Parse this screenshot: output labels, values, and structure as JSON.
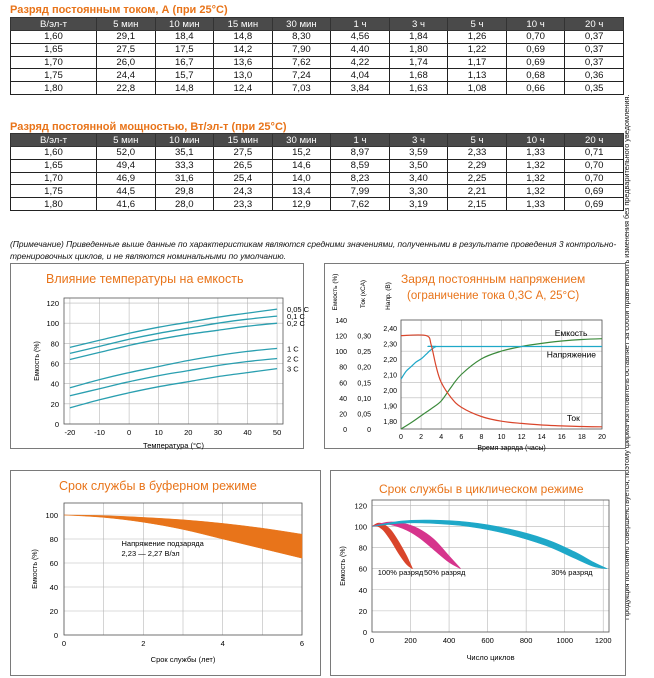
{
  "table1": {
    "title": "Разряд постоянным током, А (при 25°С)",
    "headers": [
      "В/эл-т",
      "5 мин",
      "10 мин",
      "15 мин",
      "30 мин",
      "1 ч",
      "3 ч",
      "5 ч",
      "10 ч",
      "20 ч"
    ],
    "rows": [
      [
        "1,60",
        "29,1",
        "18,4",
        "14,8",
        "8,30",
        "4,56",
        "1,84",
        "1,26",
        "0,70",
        "0,37"
      ],
      [
        "1,65",
        "27,5",
        "17,5",
        "14,2",
        "7,90",
        "4,40",
        "1,80",
        "1,22",
        "0,69",
        "0,37"
      ],
      [
        "1,70",
        "26,0",
        "16,7",
        "13,6",
        "7,62",
        "4,22",
        "1,74",
        "1,17",
        "0,69",
        "0,37"
      ],
      [
        "1,75",
        "24,4",
        "15,7",
        "13,0",
        "7,24",
        "4,04",
        "1,68",
        "1,13",
        "0,68",
        "0,36"
      ],
      [
        "1,80",
        "22,8",
        "14,8",
        "12,4",
        "7,03",
        "3,84",
        "1,63",
        "1,08",
        "0,66",
        "0,35"
      ]
    ]
  },
  "table2": {
    "title": "Разряд постоянной мощностью, Вт/эл-т (при 25°С)",
    "headers": [
      "В/эл-т",
      "5 мин",
      "10 мин",
      "15 мин",
      "30 мин",
      "1 ч",
      "3 ч",
      "5 ч",
      "10 ч",
      "20 ч"
    ],
    "rows": [
      [
        "1,60",
        "52,0",
        "35,1",
        "27,5",
        "15,2",
        "8,97",
        "3,59",
        "2,33",
        "1,33",
        "0,71"
      ],
      [
        "1,65",
        "49,4",
        "33,3",
        "26,5",
        "14,6",
        "8,59",
        "3,50",
        "2,29",
        "1,32",
        "0,70"
      ],
      [
        "1,70",
        "46,9",
        "31,6",
        "25,4",
        "14,0",
        "8,23",
        "3,40",
        "2,25",
        "1,32",
        "0,70"
      ],
      [
        "1,75",
        "44,5",
        "29,8",
        "24,3",
        "13,4",
        "7,99",
        "3,30",
        "2,21",
        "1,32",
        "0,69"
      ],
      [
        "1,80",
        "41,6",
        "28,0",
        "23,3",
        "12,9",
        "7,62",
        "3,19",
        "2,15",
        "1,33",
        "0,69"
      ]
    ]
  },
  "note": "(Примечание) Приведенные выше данные по характеристикам являются средними значениями, полученными в результате проведения 3 контрольно-тренировочных циклов, и не являются номинальными по умолчанию.",
  "side_text": "Продукция постоянно совершенствуется, поэтому фирма-изготовитель оставляет за собой право вносить изменения без предварительного уведомления.",
  "colors": {
    "orange": "#e8741a",
    "teal": "#2a9fb0",
    "green": "#3b8a3b",
    "red": "#d9452b",
    "magenta": "#d6348c",
    "cyan": "#1ea8c8",
    "grid": "#b8b8b8"
  },
  "chart_data": [
    {
      "type": "line",
      "title": "Влияние температуры на емкость",
      "xlabel": "Температура (°С)",
      "ylabel": "Емкость (%)",
      "x_ticks": [
        "-20",
        "-10",
        "0",
        "10",
        "20",
        "30",
        "40",
        "50"
      ],
      "y_ticks": [
        "0",
        "20",
        "40",
        "60",
        "80",
        "100",
        "120"
      ],
      "xlim": [
        -22,
        52
      ],
      "ylim": [
        0,
        125
      ],
      "x": [
        -20,
        -10,
        0,
        10,
        20,
        30,
        40,
        50
      ],
      "series": [
        {
          "name": "0,05 С",
          "values": [
            76,
            83,
            90,
            96,
            101,
            106,
            110,
            114
          ]
        },
        {
          "name": "0,1 С",
          "values": [
            70,
            77,
            84,
            90,
            95,
            100,
            104,
            107
          ]
        },
        {
          "name": "0,2 С",
          "values": [
            64,
            71,
            78,
            84,
            89,
            93,
            97,
            100
          ]
        },
        {
          "name": "1 С",
          "values": [
            36,
            44,
            51,
            57,
            63,
            68,
            72,
            75
          ]
        },
        {
          "name": "2 С",
          "values": [
            28,
            35,
            42,
            48,
            53,
            58,
            62,
            65
          ]
        },
        {
          "name": "3 С",
          "values": [
            16,
            24,
            31,
            37,
            42,
            47,
            51,
            55
          ]
        }
      ]
    },
    {
      "type": "line",
      "title": "Заряд постоянным напряжением",
      "subtitle": "(ограничение тока 0,3С А, 25°С)",
      "xlabel": "Время заряда (часы)",
      "axis_headers": [
        "Емкость (%)",
        "Ток (хСА)",
        "Напр. (В)"
      ],
      "x_ticks": [
        "0",
        "2",
        "4",
        "6",
        "8",
        "10",
        "12",
        "14",
        "16",
        "18",
        "20"
      ],
      "capacity_ticks": [
        "0",
        "20",
        "40",
        "60",
        "80",
        "100",
        "120",
        "140"
      ],
      "current_ticks": [
        "0",
        "0,05",
        "0,10",
        "0,15",
        "0,20",
        "0,25",
        "0,30"
      ],
      "voltage_ticks": [
        "1,80",
        "1,90",
        "2,00",
        "2,10",
        "2,20",
        "2,30",
        "2,40"
      ],
      "xlim": [
        0,
        20
      ],
      "series": [
        {
          "name": "Емкость",
          "axis": "capacity",
          "x": [
            0,
            1,
            2,
            3,
            4,
            5,
            6,
            8,
            10,
            12,
            14,
            16,
            18,
            20
          ],
          "values": [
            0,
            8,
            17,
            26,
            36,
            54,
            70,
            90,
            100,
            106,
            110,
            113,
            115,
            116
          ]
        },
        {
          "name": "Напряжение",
          "axis": "voltage",
          "x": [
            0,
            0.5,
            1,
            1.5,
            2,
            2.5,
            3,
            3.5,
            4,
            20
          ],
          "values": [
            2.07,
            2.12,
            2.15,
            2.18,
            2.2,
            2.23,
            2.26,
            2.28,
            2.28,
            2.28
          ]
        },
        {
          "name": "Ток",
          "axis": "current",
          "x": [
            0,
            2.5,
            3,
            3.5,
            4,
            5,
            6,
            8,
            10,
            12,
            14,
            16,
            18,
            20
          ],
          "values": [
            0.3,
            0.3,
            0.27,
            0.2,
            0.15,
            0.1,
            0.07,
            0.04,
            0.025,
            0.018,
            0.013,
            0.01,
            0.008,
            0.007
          ]
        }
      ]
    },
    {
      "type": "area",
      "title": "Срок службы в буферном режиме",
      "xlabel": "Срок службы (лет)",
      "ylabel": "Емкость (%)",
      "x_ticks": [
        "0",
        "2",
        "4",
        "6"
      ],
      "y_ticks": [
        "0",
        "20",
        "40",
        "60",
        "80",
        "100"
      ],
      "xlim": [
        0,
        6
      ],
      "ylim": [
        0,
        110
      ],
      "annotation": [
        "Напряжение подзаряда",
        "2,23 — 2,27 В/эл"
      ],
      "band": {
        "x": [
          0,
          1,
          2,
          3,
          4,
          5,
          6
        ],
        "upper": [
          100,
          99.5,
          98,
          96,
          93,
          89,
          84
        ],
        "lower": [
          100,
          98,
          94,
          88,
          80,
          72,
          64
        ]
      }
    },
    {
      "type": "area",
      "title": "Срок службы в циклическом режиме",
      "xlabel": "Число циклов",
      "ylabel": "Емкость (%)",
      "x_ticks": [
        "0",
        "200",
        "400",
        "600",
        "800",
        "1000",
        "1200"
      ],
      "y_ticks": [
        "0",
        "20",
        "40",
        "60",
        "80",
        "100",
        "120"
      ],
      "xlim": [
        0,
        1230
      ],
      "ylim": [
        0,
        125
      ],
      "bands": [
        {
          "name": "100% разряд",
          "x": [
            0,
            30,
            60,
            100,
            140,
            180,
            210
          ],
          "upper": [
            100,
            103,
            102,
            96,
            85,
            72,
            60
          ],
          "lower": [
            100,
            100,
            96,
            86,
            74,
            64,
            60
          ]
        },
        {
          "name": "50% разряд",
          "x": [
            0,
            80,
            160,
            240,
            320,
            400,
            460
          ],
          "upper": [
            100,
            104,
            103,
            98,
            88,
            72,
            60
          ],
          "lower": [
            100,
            102,
            98,
            90,
            78,
            66,
            60
          ]
        },
        {
          "name": "30% разряд",
          "x": [
            0,
            150,
            300,
            500,
            700,
            900,
            1050,
            1150,
            1220
          ],
          "upper": [
            100,
            105,
            106,
            104,
            98,
            88,
            76,
            66,
            60
          ],
          "lower": [
            100,
            103,
            103,
            100,
            93,
            82,
            70,
            62,
            60
          ]
        }
      ]
    }
  ]
}
